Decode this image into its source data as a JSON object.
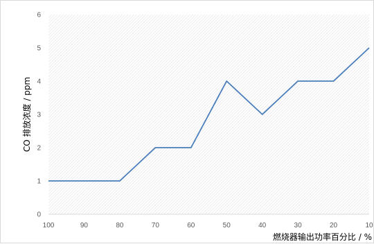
{
  "chart_data": {
    "type": "line",
    "title": "",
    "xlabel": "燃烧器输出功率百分比 / %",
    "ylabel": "CO 排放浓度 / ppm",
    "x": [
      100,
      90,
      80,
      70,
      60,
      50,
      40,
      30,
      20,
      10
    ],
    "xlim": [
      100,
      10
    ],
    "ylim": [
      0,
      6
    ],
    "y_ticks": [
      0,
      1,
      2,
      3,
      4,
      5,
      6
    ],
    "series": [
      {
        "values": [
          1,
          1,
          1,
          2,
          2,
          4,
          3,
          4,
          4,
          5
        ],
        "color": "#4a7ebb"
      }
    ],
    "grid": false,
    "plot_area_fill": "hatched light gray",
    "legend": "none"
  }
}
